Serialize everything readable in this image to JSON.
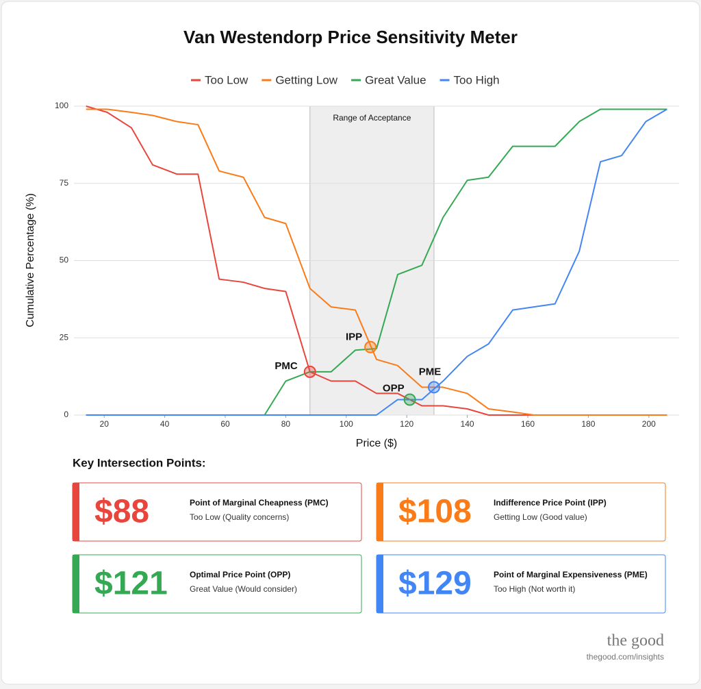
{
  "chart_data": {
    "type": "line",
    "title": "Van Westendorp Price Sensitivity Meter",
    "x_label": "Price ($)",
    "y_label": "Cumulative Percentage (%)",
    "x": [
      14,
      21,
      29,
      36,
      44,
      51,
      58,
      66,
      73,
      80,
      88,
      95,
      103,
      110,
      117,
      125,
      132,
      140,
      147,
      155,
      162,
      169,
      177,
      184,
      191,
      199,
      206
    ],
    "series": [
      {
        "name": "Too Low",
        "color": "#e8453c",
        "values": [
          100,
          98,
          93,
          81,
          78,
          78,
          44,
          43,
          41,
          40,
          14,
          11,
          11,
          7,
          7,
          3,
          3,
          2,
          0,
          0,
          0,
          0,
          0,
          0,
          0,
          0,
          0
        ]
      },
      {
        "name": "Getting Low",
        "color": "#fa7b17",
        "values": [
          99,
          99,
          98,
          97,
          95,
          94,
          79,
          77,
          64,
          62,
          41,
          35,
          34,
          18,
          16,
          9,
          9,
          7,
          2,
          1,
          0,
          0,
          0,
          0,
          0,
          0,
          0
        ]
      },
      {
        "name": "Great Value",
        "color": "#34a853",
        "values": [
          0,
          0,
          0,
          0,
          0,
          0,
          0,
          0,
          0,
          11,
          14,
          14,
          21,
          21.5,
          45.5,
          48.5,
          64,
          76,
          77,
          87,
          87,
          87,
          95,
          99,
          99,
          99,
          99
        ]
      },
      {
        "name": "Too High",
        "color": "#4285f4",
        "values": [
          0,
          0,
          0,
          0,
          0,
          0,
          0,
          0,
          0,
          0,
          0,
          0,
          0,
          0,
          5,
          5,
          11,
          19,
          23,
          34,
          35,
          36,
          53,
          82,
          84,
          95,
          99
        ]
      }
    ],
    "xlim": [
      10,
      210
    ],
    "xticks": [
      20,
      40,
      60,
      80,
      100,
      120,
      140,
      160,
      180,
      200
    ],
    "ylim": [
      0,
      100
    ],
    "yticks": [
      0,
      25,
      50,
      75,
      100
    ],
    "grid": true,
    "legend": "top",
    "acceptance_range": [
      88,
      129
    ],
    "acceptance_label": "Range of Acceptance",
    "annotations": [
      {
        "label": "PMC",
        "x": 88,
        "y": 14,
        "color": "#e8453c"
      },
      {
        "label": "IPP",
        "x": 108,
        "y": 22,
        "color": "#fa7b17"
      },
      {
        "label": "OPP",
        "x": 121,
        "y": 5,
        "color": "#34a853"
      },
      {
        "label": "PME",
        "x": 129,
        "y": 9,
        "color": "#4285f4"
      }
    ]
  },
  "key_points": {
    "heading": "Key Intersection Points:",
    "cards": [
      {
        "price": "$88",
        "title": "Point of Marginal Cheapness (PMC)",
        "subtitle": "Too Low (Quality concerns)",
        "color": "#e8453c"
      },
      {
        "price": "$108",
        "title": "Indifference Price Point (IPP)",
        "subtitle": "Getting Low (Good value)",
        "color": "#fa7b17"
      },
      {
        "price": "$121",
        "title": "Optimal Price Point (OPP)",
        "subtitle": "Great Value (Would consider)",
        "color": "#34a853"
      },
      {
        "price": "$129",
        "title": "Point of Marginal Expensiveness (PME)",
        "subtitle": "Too High (Not worth it)",
        "color": "#4285f4"
      }
    ]
  },
  "footer": {
    "brand": "the good",
    "url": "thegood.com/insights"
  }
}
